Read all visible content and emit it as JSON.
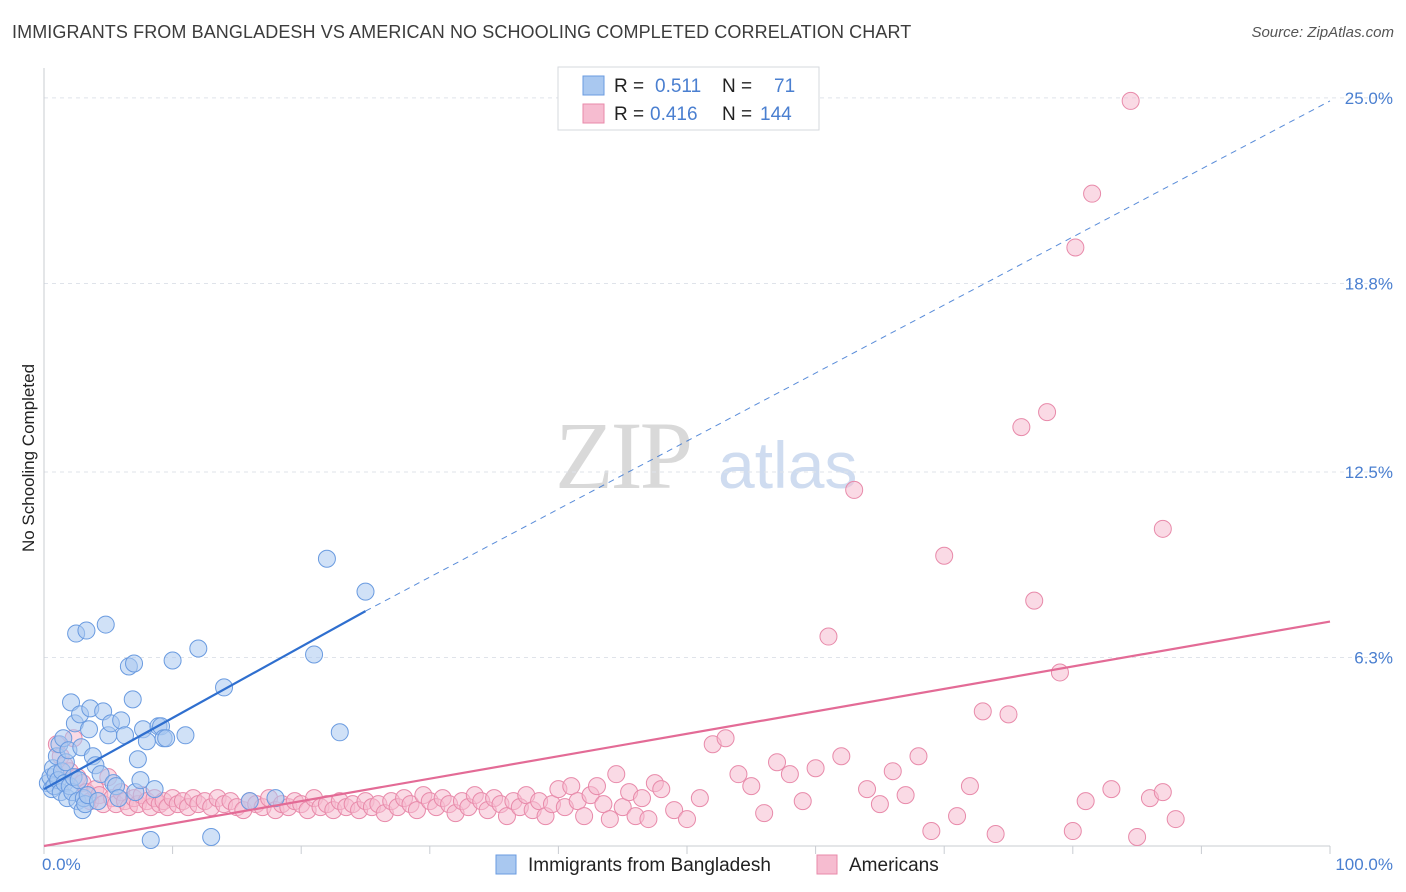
{
  "header": {
    "title": "IMMIGRANTS FROM BANGLADESH VS AMERICAN NO SCHOOLING COMPLETED CORRELATION CHART",
    "source": "Source: ZipAtlas.com"
  },
  "watermark": {
    "zip": "ZIP",
    "atlas": "atlas"
  },
  "legend": {
    "rows": [
      {
        "r_label": "R =",
        "r_value": "0.511",
        "n_label": "N =",
        "n_value": "71"
      },
      {
        "r_label": "R =",
        "r_value": "0.416",
        "n_label": "N =",
        "n_value": "144"
      }
    ]
  },
  "bottom_legend": {
    "items": [
      "Immigrants from Bangladesh",
      "Americans"
    ]
  },
  "colors": {
    "blue_fill": "#a9c8f0",
    "blue_stroke": "#6a9be0",
    "blue_line": "#2f6fcf",
    "pink_fill": "#f6bcd0",
    "pink_stroke": "#e88aaa",
    "pink_line": "#e36b96",
    "accent_text": "#4a7fd0",
    "grid": "#dfe3ea"
  },
  "chart_data": {
    "type": "scatter",
    "title": "IMMIGRANTS FROM BANGLADESH VS AMERICAN NO SCHOOLING COMPLETED CORRELATION CHART",
    "xlabel": "",
    "ylabel": "No Schooling Completed",
    "xlim": [
      0,
      100
    ],
    "ylim": [
      0,
      26
    ],
    "x_tick_labels": [
      "0.0%",
      "100.0%"
    ],
    "y_ticks": [
      6.3,
      12.5,
      18.8,
      25.0
    ],
    "y_tick_labels": [
      "6.3%",
      "12.5%",
      "18.8%",
      "25.0%"
    ],
    "grid": true,
    "series": [
      {
        "name": "Immigrants from Bangladesh",
        "r": 0.511,
        "n": 71,
        "trend": {
          "x0": 0,
          "y0": 1.9,
          "x1": 25,
          "y1": 7.85,
          "dashed_to_x": 100,
          "dashed_to_y": 24.9
        },
        "points": [
          [
            0.3,
            2.1
          ],
          [
            0.5,
            2.3
          ],
          [
            0.6,
            1.9
          ],
          [
            0.7,
            2.6
          ],
          [
            0.8,
            2.0
          ],
          [
            0.9,
            2.4
          ],
          [
            1.0,
            3.0
          ],
          [
            1.1,
            2.2
          ],
          [
            1.2,
            3.4
          ],
          [
            1.3,
            1.8
          ],
          [
            1.4,
            2.5
          ],
          [
            1.5,
            3.6
          ],
          [
            1.6,
            2.1
          ],
          [
            1.7,
            2.8
          ],
          [
            1.8,
            1.6
          ],
          [
            1.9,
            3.2
          ],
          [
            2.0,
            2.0
          ],
          [
            2.1,
            4.8
          ],
          [
            2.2,
            1.8
          ],
          [
            2.3,
            2.3
          ],
          [
            2.4,
            4.1
          ],
          [
            2.5,
            7.1
          ],
          [
            2.6,
            1.5
          ],
          [
            2.7,
            2.2
          ],
          [
            2.8,
            4.4
          ],
          [
            2.9,
            3.3
          ],
          [
            3.0,
            1.2
          ],
          [
            3.1,
            1.6
          ],
          [
            3.2,
            1.4
          ],
          [
            3.3,
            7.2
          ],
          [
            3.4,
            1.7
          ],
          [
            3.5,
            3.9
          ],
          [
            3.6,
            4.6
          ],
          [
            3.8,
            3.0
          ],
          [
            4.0,
            2.7
          ],
          [
            4.2,
            1.5
          ],
          [
            4.4,
            2.4
          ],
          [
            4.6,
            4.5
          ],
          [
            4.8,
            7.4
          ],
          [
            5.0,
            3.7
          ],
          [
            5.2,
            4.1
          ],
          [
            5.4,
            2.1
          ],
          [
            5.6,
            2.0
          ],
          [
            5.8,
            1.6
          ],
          [
            6.0,
            4.2
          ],
          [
            6.3,
            3.7
          ],
          [
            6.6,
            6.0
          ],
          [
            6.9,
            4.9
          ],
          [
            7.1,
            1.8
          ],
          [
            7.3,
            2.9
          ],
          [
            7.5,
            2.2
          ],
          [
            7.7,
            3.9
          ],
          [
            8.0,
            3.5
          ],
          [
            8.3,
            0.2
          ],
          [
            8.6,
            1.9
          ],
          [
            8.9,
            4.0
          ],
          [
            9.1,
            4.0
          ],
          [
            9.3,
            3.6
          ],
          [
            9.5,
            3.6
          ],
          [
            10.0,
            6.2
          ],
          [
            11.0,
            3.7
          ],
          [
            12.0,
            6.6
          ],
          [
            13.0,
            0.3
          ],
          [
            14.0,
            5.3
          ],
          [
            16.0,
            1.5
          ],
          [
            18.0,
            1.6
          ],
          [
            21.0,
            6.4
          ],
          [
            23.0,
            3.8
          ],
          [
            22.0,
            9.6
          ],
          [
            25.0,
            8.5
          ],
          [
            7.0,
            6.1
          ]
        ]
      },
      {
        "name": "Americans",
        "r": 0.416,
        "n": 144,
        "trend": {
          "x0": 0,
          "y0": 0.0,
          "x1": 100,
          "y1": 7.5
        },
        "points": [
          [
            1.0,
            3.4
          ],
          [
            1.3,
            3.0
          ],
          [
            1.6,
            2.7
          ],
          [
            2.0,
            2.5
          ],
          [
            2.3,
            3.6
          ],
          [
            2.6,
            2.3
          ],
          [
            3.0,
            2.1
          ],
          [
            3.3,
            1.8
          ],
          [
            3.6,
            1.5
          ],
          [
            4.0,
            1.9
          ],
          [
            4.3,
            1.7
          ],
          [
            4.6,
            1.4
          ],
          [
            5.0,
            2.3
          ],
          [
            5.3,
            1.6
          ],
          [
            5.6,
            1.4
          ],
          [
            6.0,
            1.8
          ],
          [
            6.3,
            1.5
          ],
          [
            6.6,
            1.3
          ],
          [
            7.0,
            1.6
          ],
          [
            7.3,
            1.4
          ],
          [
            7.6,
            1.7
          ],
          [
            8.0,
            1.5
          ],
          [
            8.3,
            1.3
          ],
          [
            8.6,
            1.6
          ],
          [
            9.0,
            1.4
          ],
          [
            9.3,
            1.5
          ],
          [
            9.6,
            1.3
          ],
          [
            10.0,
            1.6
          ],
          [
            10.4,
            1.4
          ],
          [
            10.8,
            1.5
          ],
          [
            11.2,
            1.3
          ],
          [
            11.6,
            1.6
          ],
          [
            12.0,
            1.4
          ],
          [
            12.5,
            1.5
          ],
          [
            13.0,
            1.3
          ],
          [
            13.5,
            1.6
          ],
          [
            14.0,
            1.4
          ],
          [
            14.5,
            1.5
          ],
          [
            15.0,
            1.3
          ],
          [
            15.5,
            1.2
          ],
          [
            16.0,
            1.5
          ],
          [
            16.5,
            1.4
          ],
          [
            17.0,
            1.3
          ],
          [
            17.5,
            1.6
          ],
          [
            18.0,
            1.2
          ],
          [
            18.5,
            1.4
          ],
          [
            19.0,
            1.3
          ],
          [
            19.5,
            1.5
          ],
          [
            20.0,
            1.4
          ],
          [
            20.5,
            1.2
          ],
          [
            21.0,
            1.6
          ],
          [
            21.5,
            1.3
          ],
          [
            22.0,
            1.4
          ],
          [
            22.5,
            1.2
          ],
          [
            23.0,
            1.5
          ],
          [
            23.5,
            1.3
          ],
          [
            24.0,
            1.4
          ],
          [
            24.5,
            1.2
          ],
          [
            25.0,
            1.5
          ],
          [
            25.5,
            1.3
          ],
          [
            26.0,
            1.4
          ],
          [
            26.5,
            1.1
          ],
          [
            27.0,
            1.5
          ],
          [
            27.5,
            1.3
          ],
          [
            28.0,
            1.6
          ],
          [
            28.5,
            1.4
          ],
          [
            29.0,
            1.2
          ],
          [
            29.5,
            1.7
          ],
          [
            30.0,
            1.5
          ],
          [
            30.5,
            1.3
          ],
          [
            31.0,
            1.6
          ],
          [
            31.5,
            1.4
          ],
          [
            32.0,
            1.1
          ],
          [
            32.5,
            1.5
          ],
          [
            33.0,
            1.3
          ],
          [
            33.5,
            1.7
          ],
          [
            34.0,
            1.5
          ],
          [
            34.5,
            1.2
          ],
          [
            35.0,
            1.6
          ],
          [
            35.5,
            1.4
          ],
          [
            36.0,
            1.0
          ],
          [
            36.5,
            1.5
          ],
          [
            37.0,
            1.3
          ],
          [
            37.5,
            1.7
          ],
          [
            38.0,
            1.2
          ],
          [
            38.5,
            1.5
          ],
          [
            39.0,
            1.0
          ],
          [
            39.5,
            1.4
          ],
          [
            40.0,
            1.9
          ],
          [
            40.5,
            1.3
          ],
          [
            41.0,
            2.0
          ],
          [
            41.5,
            1.5
          ],
          [
            42.0,
            1.0
          ],
          [
            42.5,
            1.7
          ],
          [
            43.0,
            2.0
          ],
          [
            43.5,
            1.4
          ],
          [
            44.0,
            0.9
          ],
          [
            44.5,
            2.4
          ],
          [
            45.0,
            1.3
          ],
          [
            45.5,
            1.8
          ],
          [
            46.0,
            1.0
          ],
          [
            46.5,
            1.6
          ],
          [
            47.0,
            0.9
          ],
          [
            47.5,
            2.1
          ],
          [
            48.0,
            1.9
          ],
          [
            49.0,
            1.2
          ],
          [
            50.0,
            0.9
          ],
          [
            51.0,
            1.6
          ],
          [
            52.0,
            3.4
          ],
          [
            53.0,
            3.6
          ],
          [
            54.0,
            2.4
          ],
          [
            55.0,
            2.0
          ],
          [
            56.0,
            1.1
          ],
          [
            57.0,
            2.8
          ],
          [
            58.0,
            2.4
          ],
          [
            59.0,
            1.5
          ],
          [
            60.0,
            2.6
          ],
          [
            61.0,
            7.0
          ],
          [
            62.0,
            3.0
          ],
          [
            63.0,
            11.9
          ],
          [
            64.0,
            1.9
          ],
          [
            65.0,
            1.4
          ],
          [
            66.0,
            2.5
          ],
          [
            67.0,
            1.7
          ],
          [
            68.0,
            3.0
          ],
          [
            69.0,
            0.5
          ],
          [
            70.0,
            9.7
          ],
          [
            71.0,
            1.0
          ],
          [
            72.0,
            2.0
          ],
          [
            73.0,
            4.5
          ],
          [
            74.0,
            0.4
          ],
          [
            75.0,
            4.4
          ],
          [
            76.0,
            14.0
          ],
          [
            77.0,
            8.2
          ],
          [
            78.0,
            14.5
          ],
          [
            79.0,
            5.8
          ],
          [
            80.0,
            0.5
          ],
          [
            81.0,
            1.5
          ],
          [
            83.0,
            1.9
          ],
          [
            85.0,
            0.3
          ],
          [
            86.0,
            1.6
          ],
          [
            87.0,
            1.8
          ],
          [
            88.0,
            0.9
          ],
          [
            80.2,
            20.0
          ],
          [
            81.5,
            21.8
          ],
          [
            84.5,
            24.9
          ],
          [
            87.0,
            10.6
          ]
        ]
      }
    ]
  }
}
